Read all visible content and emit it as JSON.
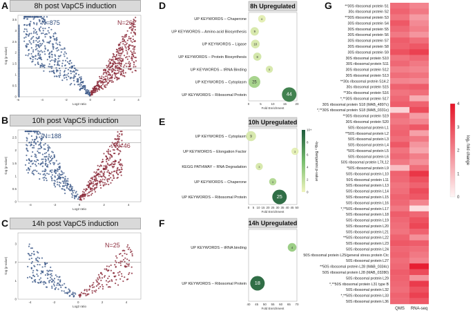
{
  "panels": {
    "A": {
      "letter": "A",
      "title": "8h post VapC5 induction",
      "n_left": "N=875",
      "n_right": "N=262",
      "xlabel": "Log2 ratio",
      "ylabel": "-log (p-value)",
      "xticks": [
        "-6",
        "-4",
        "-2",
        "0",
        "2",
        "4"
      ],
      "yticks": [
        "0",
        "0.5",
        "1",
        "1.5",
        "2",
        "2.5",
        "3",
        "3.5"
      ]
    },
    "B": {
      "letter": "B",
      "title": "10h post VapC5 induction",
      "n_left": "N=188",
      "n_right": "N=46",
      "xlabel": "Log2 ratio",
      "ylabel": "-log (p-value)",
      "xticks": [
        "-4",
        "-2",
        "0",
        "2",
        "4"
      ],
      "yticks": [
        "0",
        "0.5",
        "1",
        "1.5",
        "2",
        "2.5"
      ]
    },
    "C": {
      "letter": "C",
      "title": "14h post VapC5 induction",
      "n_right": "N=25",
      "xlabel": "Log2 ratio",
      "ylabel": "-log (p-value)",
      "xticks": [
        "-4",
        "-2",
        "0",
        "2",
        "4"
      ],
      "yticks": [
        "0",
        "1",
        "2",
        "3"
      ]
    }
  },
  "chart_data": [
    {
      "type": "scatter",
      "panel": "D",
      "title": "8h Upregulated",
      "xlabel": "Fold Enrichment",
      "xlim": [
        0,
        20
      ],
      "xticks": [
        0,
        5,
        10,
        15,
        20
      ],
      "categories": [
        "UP KEYWORDS – Chaperone",
        "UP KEYWORDS – Amino-acid Biosynthesis",
        "UP KEYWORDS – Ligase",
        "UP KEYWORDS – Protein Biosynthesis",
        "UP KEYWORDS – tRNA Binding",
        "UP KEYWORDS – Cytoplasm",
        "UP KEYWORDS – Ribosomal Protein"
      ],
      "x": [
        5.5,
        2.5,
        2.8,
        3.6,
        8.6,
        2.4,
        16.8
      ],
      "counts": [
        "6",
        "9",
        "10",
        "8",
        "5",
        "25",
        "44"
      ],
      "pvalue": [
        0.5,
        1.0,
        1.0,
        1.2,
        1.0,
        3.0,
        8.0
      ]
    },
    {
      "type": "scatter",
      "panel": "E",
      "title": "10h Upregulated",
      "xlabel": "Fold Enrichment",
      "xlim": [
        0,
        50
      ],
      "xticks": [
        0,
        5,
        10,
        15,
        20,
        25,
        30,
        35,
        40,
        45,
        50
      ],
      "categories": [
        "UP KEYWORDS – Cytoplasm",
        "UP KEYWORDS – Elongation Factor",
        "KEGG PATHWAY – RNA Degradation",
        "UP KEYWORDS – Chaperone",
        "UP KEYWORDS – Ribosomal Protein"
      ],
      "x": [
        2.5,
        48,
        11,
        25,
        32
      ],
      "counts": [
        "9",
        "3",
        "3",
        "3",
        "25"
      ],
      "pvalue": [
        1.0,
        0.5,
        1.0,
        2.5,
        9.0
      ],
      "legend": {
        "title": "-log₁₀ Benjamini p-value",
        "ticks": [
          "0",
          "2",
          "4",
          "6",
          "8",
          "10+"
        ]
      }
    },
    {
      "type": "scatter",
      "panel": "F",
      "title": "14h Upregulated",
      "xlabel": "Fold Enrichment",
      "xlim": [
        40,
        70
      ],
      "xticks": [
        40,
        45,
        50,
        55,
        60,
        65,
        70
      ],
      "categories": [
        "UP KEYWORDS – tRNA binding",
        "UP KEYWORDS – Ribosomal Protein"
      ],
      "x": [
        67,
        45.5
      ],
      "counts": [
        "4",
        "18"
      ],
      "pvalue": [
        3.5,
        9.0
      ]
    },
    {
      "type": "heatmap",
      "panel": "G",
      "columns": [
        "QMS",
        "RNA-seq"
      ],
      "colorbar": {
        "title": "log₂ fold change",
        "ticks": [
          "0",
          "1",
          "2",
          "3",
          "4"
        ],
        "vmin": 0,
        "vmax": 4
      },
      "rows": [
        "**30S ribosomal protein S1",
        "30s ribosomal protein S2",
        "**30S ribosomal protein S3",
        "30S ribosomal protein S4",
        "30S ribosomal protein S5",
        "30S ribosomal protein S6",
        "30S ribosomal protein S7",
        "30S ribosomal protein S8",
        "30S ribosomal protein S9",
        "30S ribosomal protein S10",
        "30S ribosomal protein S11",
        "30S ribosomal protein S12",
        "30S ribosomal protein S13",
        "**30s ribosomal protein S14.2",
        "30s ribosomal protein S15",
        "**30s ribosomal protein S16",
        "*,**30S ribosomal protein S17",
        "30S ribosomal protein S18 (MAB_4897c)",
        "*,**30S ribosomal protein S18 (MAB_0331c)",
        "**30S ribosomal protein S19",
        "30S ribosomal protein S20",
        "50S ribosomal protein L1",
        "**50S ribosomal protein L2",
        "50S ribosomal protein L3",
        "50S ribosomal protein L4",
        "*50S ribosomal protein L5",
        "50S ribosomal protein L6",
        "50S ribosomal protein L7/L12",
        "*50S ribosomal protein L9",
        "50S ribosomal protein L10",
        "50S ribosomal protein L11",
        "50S ribosomal protein L13",
        "50S ribosomal protein L14",
        "50S ribosomal protein L15",
        "50S ribosomal protein L16",
        "*,**50S ribosomal protein L17",
        "50S ribosomal protein L18",
        "50S ribosomal protein L19",
        "50S ribosomal protein L20",
        "50S ribosomal protein L21",
        "**50S ribosomal protein L22",
        "50S ribosomal protein L23",
        "50S ribosomal protein L24",
        "50S ribosomal protein L25/general stress protein Ctc",
        "50S ribosomal protein L27",
        "**50S ribosomal protein L28 (MAB_0334c)",
        "50S ribosomal protein L28 (MAB_03280)",
        "50S ribosomal protein L29",
        "*,**50S ribosomal protein L31 type B",
        "50S ribosomal protein L32",
        "*,**50S ribosomal protein L33",
        "50S ribosomal protein L36"
      ],
      "values": [
        [
          2.4,
          2.0
        ],
        [
          2.6,
          2.2
        ],
        [
          2.3,
          1.6
        ],
        [
          2.8,
          1.9
        ],
        [
          2.5,
          2.1
        ],
        [
          2.2,
          1.7
        ],
        [
          2.7,
          2.4
        ],
        [
          2.6,
          2.8
        ],
        [
          2.9,
          3.2
        ],
        [
          2.3,
          2.5
        ],
        [
          2.5,
          2.2
        ],
        [
          2.1,
          2.0
        ],
        [
          2.4,
          2.3
        ],
        [
          2.0,
          1.9
        ],
        [
          2.6,
          2.7
        ],
        [
          2.3,
          2.4
        ],
        [
          2.5,
          1.3
        ],
        [
          2.7,
          2.6
        ],
        [
          0.6,
          3.0
        ],
        [
          2.4,
          1.6
        ],
        [
          2.2,
          2.0
        ],
        [
          2.5,
          2.8
        ],
        [
          2.6,
          1.5
        ],
        [
          2.4,
          2.2
        ],
        [
          2.8,
          1.7
        ],
        [
          2.3,
          1.4
        ],
        [
          2.5,
          2.1
        ],
        [
          2.2,
          1.8
        ],
        [
          1.0,
          2.4
        ],
        [
          2.6,
          3.4
        ],
        [
          2.5,
          2.9
        ],
        [
          2.3,
          2.6
        ],
        [
          2.4,
          3.0
        ],
        [
          2.6,
          2.8
        ],
        [
          2.5,
          2.0
        ],
        [
          2.2,
          0.4
        ],
        [
          2.7,
          2.5
        ],
        [
          2.5,
          2.9
        ],
        [
          2.4,
          3.1
        ],
        [
          2.3,
          2.6
        ],
        [
          2.6,
          1.8
        ],
        [
          2.8,
          2.7
        ],
        [
          2.5,
          2.4
        ],
        [
          2.6,
          2.2
        ],
        [
          2.4,
          2.0
        ],
        [
          2.5,
          3.8
        ],
        [
          2.7,
          3.0
        ],
        [
          2.6,
          1.7
        ],
        [
          2.5,
          3.3
        ],
        [
          2.4,
          2.9
        ],
        [
          2.6,
          3.2
        ],
        [
          2.5,
          2.8
        ]
      ]
    }
  ]
}
